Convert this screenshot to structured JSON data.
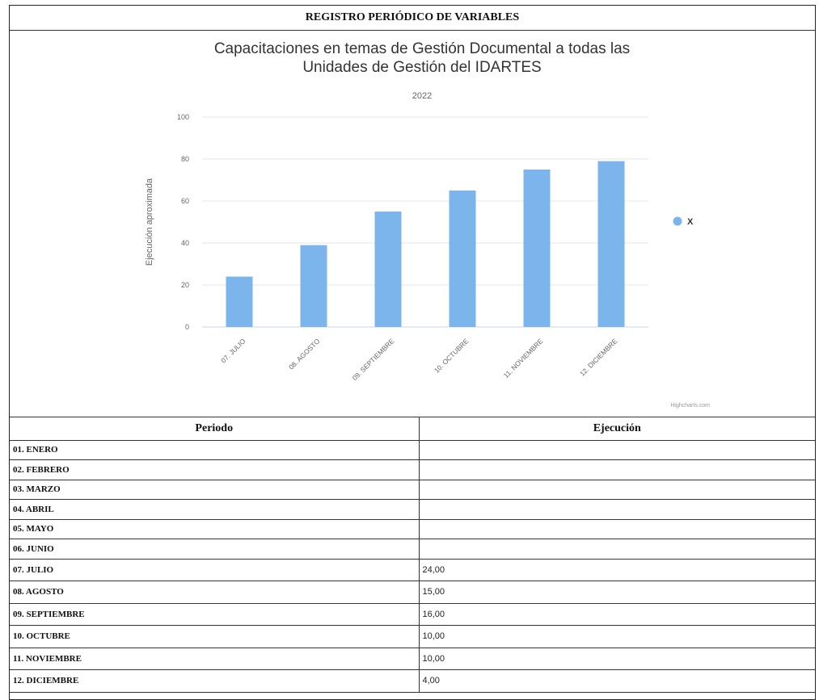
{
  "header": {
    "title": "REGISTRO PERIÓDICO DE VARIABLES"
  },
  "chart_data": {
    "type": "bar",
    "title": "Capacitaciones en temas de Gestión Documental a todas las Unidades de Gestión del IDARTES",
    "title_lines": [
      "Capacitaciones en temas de Gestión Documental a todas las",
      "Unidades de Gestión del IDARTES"
    ],
    "subtitle": "2022",
    "ylabel": "Ejecución aproximada",
    "xlabel": "",
    "ylim": [
      0,
      100
    ],
    "yticks": [
      0,
      20,
      40,
      60,
      80,
      100
    ],
    "categories": [
      "07. JULIO",
      "08. AGOSTO",
      "09. SEPTIEMBRE",
      "10. OCTUBRE",
      "11. NOVIEMBRE",
      "12. DICIEMBRE"
    ],
    "series": [
      {
        "name": "X",
        "values": [
          24,
          39,
          55,
          65,
          75,
          79
        ]
      }
    ],
    "bar_color": "#7cb5ec",
    "legend_position": "right",
    "grid": true,
    "credits": "Highcharts.com"
  },
  "table": {
    "headers": {
      "period": "Periodo",
      "execution": "Ejecución"
    },
    "rows": [
      {
        "period": "01. ENERO",
        "value": ""
      },
      {
        "period": "02. FEBRERO",
        "value": ""
      },
      {
        "period": "03. MARZO",
        "value": ""
      },
      {
        "period": "04. ABRIL",
        "value": ""
      },
      {
        "period": "05. MAYO",
        "value": ""
      },
      {
        "period": "06. JUNIO",
        "value": ""
      },
      {
        "period": "07. JULIO",
        "value": "24,00"
      },
      {
        "period": "08. AGOSTO",
        "value": "15,00"
      },
      {
        "period": "09. SEPTIEMBRE",
        "value": "16,00"
      },
      {
        "period": "10. OCTUBRE",
        "value": "10,00"
      },
      {
        "period": "11. NOVIEMBRE",
        "value": "10,00"
      },
      {
        "period": "12. DICIEMBRE",
        "value": "4,00"
      }
    ]
  }
}
